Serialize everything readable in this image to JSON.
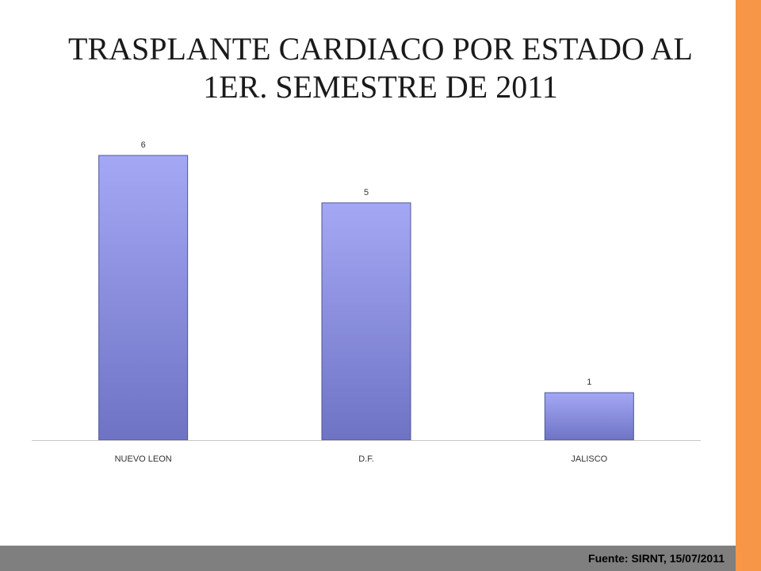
{
  "title_line1": "TRASPLANTE CARDIACO POR ESTADO AL",
  "title_line2": "1ER. SEMESTRE DE 2011",
  "footer": "Fuente: SIRNT, 15/07/2011",
  "colors": {
    "accent": "#f79646",
    "footer_band": "#7f7f7f",
    "bar_top": "#a4a8f4",
    "bar_bottom": "#6e73c4",
    "bar_edge": "#4f539e",
    "axis": "#c8c8c8"
  },
  "chart_data": {
    "type": "bar",
    "categories": [
      "NUEVO LEON",
      "D.F.",
      "JALISCO"
    ],
    "values": [
      6,
      5,
      1
    ],
    "data_labels": [
      "6",
      "5",
      "1"
    ],
    "title": "TRASPLANTE CARDIACO POR ESTADO AL 1ER. SEMESTRE DE 2011",
    "xlabel": "",
    "ylabel": "",
    "ylim": [
      0,
      6
    ],
    "grid": false,
    "legend": "none"
  }
}
